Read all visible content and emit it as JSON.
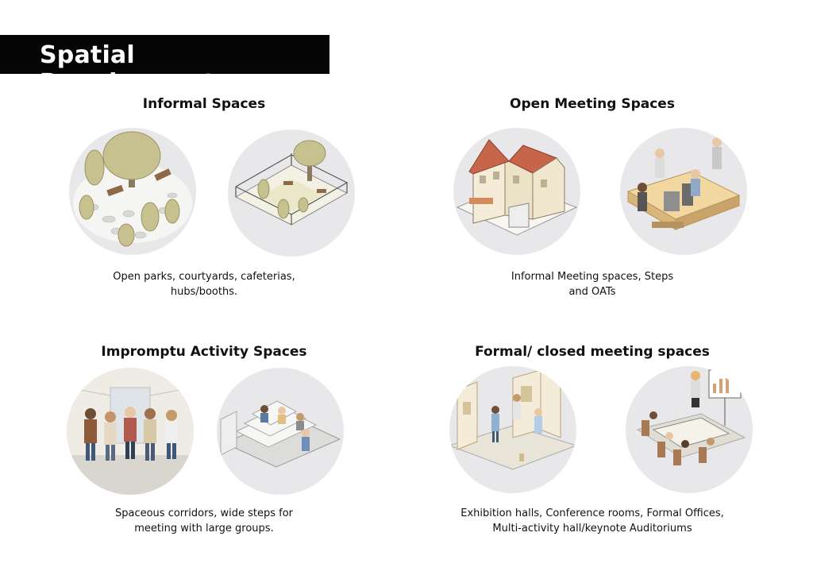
{
  "header": {
    "title": "Spatial Requirements"
  },
  "sections": [
    {
      "title": "Informal Spaces",
      "description_line1": "Open parks, courtyards, cafeterias,",
      "description_line2": "hubs/booths.",
      "illustrations": [
        "park-trees-illustration",
        "fenced-courtyard-illustration"
      ]
    },
    {
      "title": "Open Meeting Spaces",
      "description_line1": "Informal Meeting spaces, Steps",
      "description_line2": "and OATs",
      "illustrations": [
        "cafe-building-illustration",
        "stage-platform-illustration"
      ]
    },
    {
      "title": "Impromptu Activity Spaces",
      "description_line1": "Spaceous corridors, wide steps for",
      "description_line2": "meeting with large groups.",
      "illustrations": [
        "corridor-crowd-illustration",
        "wide-steps-illustration"
      ]
    },
    {
      "title": "Formal/ closed meeting spaces",
      "description_line1": "Exhibition halls, Conference rooms, Formal Offices,",
      "description_line2": "Multi-activity hall/keynote Auditoriums",
      "illustrations": [
        "exhibition-hall-illustration",
        "conference-room-illustration"
      ]
    }
  ]
}
